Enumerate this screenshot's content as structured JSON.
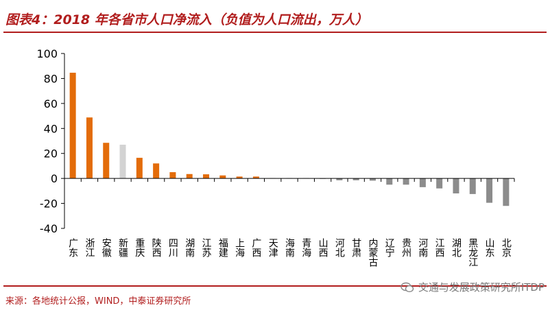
{
  "title": "图表4：2018 年各省市人口净流入（负值为人口流出，万人）",
  "source": "来源：各地统计公报，WIND，中泰证券研究所",
  "watermark": "交通与发展政策研究所ITDP",
  "colors": {
    "orange": "#e36c0a",
    "light_gray": "#d3d3d3",
    "gray": "#8c8c8c",
    "accent_red": "#b11d1d"
  },
  "chart_data": {
    "type": "bar",
    "ylim": [
      -40,
      100
    ],
    "yticks": [
      -40,
      -20,
      0,
      20,
      40,
      60,
      80,
      100
    ],
    "categories": [
      "广东",
      "浙江",
      "安徽",
      "新疆",
      "重庆",
      "陕西",
      "四川",
      "湖南",
      "江苏",
      "福建",
      "上海",
      "广西",
      "天津",
      "海南",
      "青海",
      "山西",
      "河北",
      "甘肃",
      "内蒙古",
      "辽宁",
      "贵州",
      "河南",
      "江西",
      "湖北",
      "黑龙江",
      "山东",
      "北京"
    ],
    "values": [
      84.6,
      48.8,
      28.5,
      27.0,
      16.5,
      12.0,
      5.0,
      3.5,
      3.3,
      2.4,
      1.5,
      1.5,
      0.2,
      0.2,
      0.2,
      -0.3,
      -1.5,
      -1.5,
      -1.8,
      -5.0,
      -5.0,
      -7.0,
      -8.0,
      -12.0,
      -12.5,
      -19.5,
      -22.0
    ],
    "bar_colors": [
      "orange",
      "orange",
      "orange",
      "light_gray",
      "orange",
      "orange",
      "orange",
      "orange",
      "orange",
      "orange",
      "orange",
      "orange",
      "gray",
      "gray",
      "gray",
      "gray",
      "gray",
      "gray",
      "gray",
      "gray",
      "gray",
      "gray",
      "gray",
      "gray",
      "gray",
      "gray",
      "gray"
    ]
  }
}
